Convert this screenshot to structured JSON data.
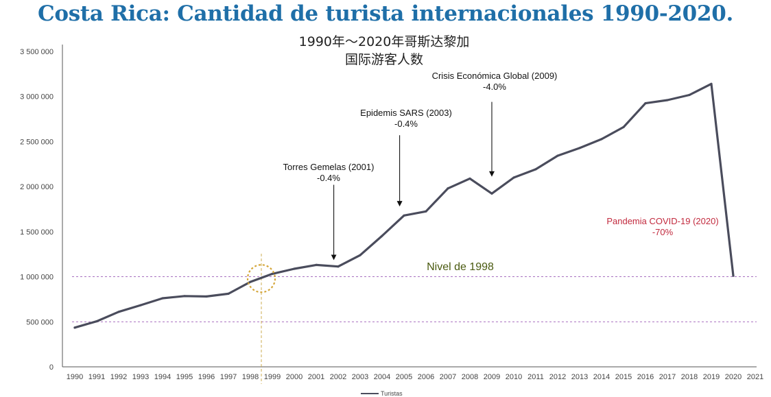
{
  "chart_data": {
    "type": "line",
    "title": "Costa Rica: Cantidad de turista internacionales 1990-2020.",
    "subtitle_lines": [
      "1990年～2020年哥斯达黎加",
      "国际游客人数"
    ],
    "x": [
      1990,
      1991,
      1992,
      1993,
      1994,
      1995,
      1996,
      1997,
      1998,
      1999,
      2000,
      2001,
      2002,
      2003,
      2004,
      2005,
      2006,
      2007,
      2008,
      2009,
      2010,
      2011,
      2012,
      2013,
      2014,
      2015,
      2016,
      2017,
      2018,
      2019,
      2020
    ],
    "x_tick_labels": [
      "1990",
      "1991",
      "1992",
      "1993",
      "1994",
      "1995",
      "1996",
      "1997",
      "1998",
      "1999",
      "2000",
      "2001",
      "2002",
      "2003",
      "2004",
      "2005",
      "2006",
      "2007",
      "2008",
      "2009",
      "2010",
      "2011",
      "2012",
      "2013",
      "2014",
      "2015",
      "2016",
      "2017",
      "2018",
      "2019",
      "2020",
      "2021"
    ],
    "series": [
      {
        "name": "Turistas",
        "color": "#4a4c5c",
        "values": [
          435000,
          505000,
          610000,
          684000,
          761000,
          785000,
          781000,
          811000,
          943000,
          1032000,
          1088000,
          1131000,
          1113000,
          1239000,
          1453000,
          1679000,
          1725000,
          1980000,
          2089000,
          1923000,
          2100000,
          2192000,
          2343000,
          2428000,
          2527000,
          2660000,
          2925000,
          2960000,
          3017000,
          3140000,
          1011000
        ]
      }
    ],
    "ylim": [
      0,
      3500000
    ],
    "y_ticks": [
      0,
      500000,
      1000000,
      1500000,
      2000000,
      2500000,
      3000000,
      3500000
    ],
    "y_tick_labels": [
      "0",
      "500 000",
      "1 000 000",
      "1 500 000",
      "2 000 000",
      "2 500 000",
      "3 000 000",
      "3 500 000"
    ],
    "reference_lines": [
      {
        "y": 1000000,
        "color": "#9b59b6",
        "style": "dashed"
      },
      {
        "y": 500000,
        "color": "#9b59b6",
        "style": "dashed"
      }
    ],
    "vertical_marker": {
      "x": 1998.5,
      "color": "#c9a640",
      "style": "dashed"
    },
    "highlight": {
      "x": 1998.5,
      "y": 980000,
      "color": "#d4a63a"
    },
    "annotations": [
      {
        "lines": [
          "Torres Gemelas (2001)",
          "-0.4%"
        ],
        "arrow_x": 2001.8,
        "arrow_from": 2020000,
        "arrow_to": 1215000,
        "color": "#111111"
      },
      {
        "lines": [
          "Epidemis SARS (2003)",
          "-0.4%"
        ],
        "arrow_x": 2004.8,
        "arrow_from": 2570000,
        "arrow_to": 1810000,
        "color": "#111111"
      },
      {
        "lines": [
          "Crisis Económica Global (2009)",
          "-4.0%"
        ],
        "arrow_x": 2009.0,
        "arrow_from": 2940000,
        "arrow_to": 2140000,
        "color": "#111111"
      },
      {
        "lines": [
          "Pandemia COVID-19 (2020)",
          "-70%"
        ],
        "color": "#c22a3e"
      }
    ],
    "reference_label": "Nivel de 1998",
    "legend": {
      "label": "Turistas",
      "placement": "bottom"
    }
  }
}
